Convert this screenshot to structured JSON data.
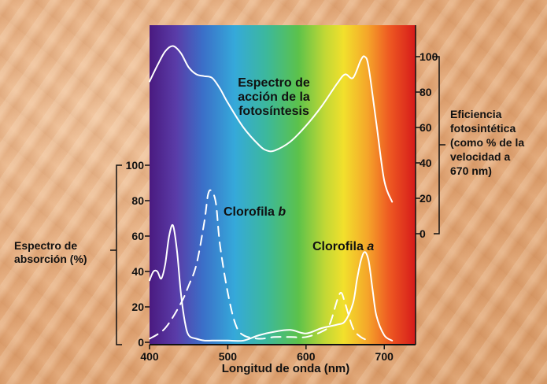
{
  "chart_data": {
    "type": "line",
    "xlabel": "Longitud de onda (nm)",
    "x_ticks": [
      "400",
      "500",
      "600",
      "700"
    ],
    "xlim": [
      400,
      740
    ],
    "left_axis": {
      "label_lines": [
        "Espectro de",
        "absorción (%)"
      ],
      "ticks": [
        "0",
        "20",
        "40",
        "60",
        "80",
        "100"
      ],
      "ylim": [
        0,
        100
      ]
    },
    "right_axis": {
      "label_lines": [
        "Eficiencia",
        "fotosintética",
        "(como % de la",
        "velocidad a",
        "670 nm)"
      ],
      "ticks": [
        "0",
        "20",
        "40",
        "60",
        "80",
        "100"
      ],
      "ylim": [
        0,
        100
      ]
    },
    "annotations": {
      "action_lines": [
        "Espectro de",
        "acción de la",
        "fotosíntesis"
      ],
      "chl_b_text": "Clorofila ",
      "chl_b_letter": "b",
      "chl_a_text": "Clorofila ",
      "chl_a_letter": "a"
    },
    "series": [
      {
        "axis": "right",
        "style": "solid",
        "x": [
          400,
          410,
          420,
          430,
          440,
          450,
          460,
          470,
          480,
          490,
          500,
          520,
          540,
          550,
          560,
          580,
          600,
          620,
          640,
          650,
          660,
          670,
          675,
          680,
          690,
          700,
          710
        ],
        "y": [
          86,
          95,
          103,
          106,
          102,
          94,
          90,
          89,
          88,
          82,
          74,
          60,
          50,
          47,
          47,
          52,
          61,
          72,
          85,
          90,
          88,
          98,
          100,
          94,
          62,
          30,
          18
        ]
      },
      {
        "axis": "left",
        "style": "solid",
        "x": [
          400,
          405,
          410,
          415,
          420,
          425,
          430,
          435,
          440,
          445,
          450,
          460,
          470,
          480,
          490,
          500,
          520,
          540,
          560,
          580,
          600,
          620,
          640,
          650,
          660,
          665,
          670,
          675,
          680,
          685,
          690,
          700,
          710
        ],
        "y": [
          35,
          40,
          40,
          36,
          44,
          60,
          66,
          52,
          28,
          12,
          4,
          2,
          1,
          1,
          1,
          1,
          1,
          4,
          6,
          7,
          5,
          8,
          10,
          12,
          22,
          35,
          46,
          51,
          46,
          30,
          15,
          4,
          1
        ]
      },
      {
        "axis": "left",
        "style": "dashed",
        "x": [
          400,
          420,
          440,
          450,
          460,
          470,
          475,
          480,
          485,
          490,
          500,
          510,
          520,
          540,
          560,
          580,
          600,
          620,
          630,
          640,
          645,
          650,
          660,
          670,
          680
        ],
        "y": [
          2,
          8,
          22,
          32,
          44,
          68,
          84,
          85,
          78,
          55,
          28,
          10,
          4,
          2,
          3,
          3,
          3,
          6,
          10,
          24,
          28,
          22,
          8,
          3,
          1
        ]
      }
    ]
  }
}
